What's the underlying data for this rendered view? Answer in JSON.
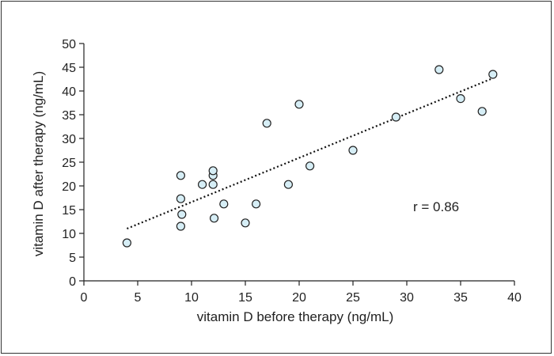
{
  "chart_data": {
    "type": "scatter",
    "title": "",
    "xlabel": "vitamin D before therapy (ng/mL)",
    "ylabel": "vitamin D after therapy (ng/mL)",
    "xlim": [
      0,
      40
    ],
    "ylim": [
      0,
      50
    ],
    "xticks": [
      0,
      5,
      10,
      15,
      20,
      25,
      30,
      35,
      40
    ],
    "yticks": [
      0,
      5,
      10,
      15,
      20,
      25,
      30,
      35,
      40,
      45,
      50
    ],
    "grid": false,
    "points": [
      {
        "x": 4,
        "y": 8
      },
      {
        "x": 9,
        "y": 11.5
      },
      {
        "x": 9.1,
        "y": 14
      },
      {
        "x": 9,
        "y": 17.3
      },
      {
        "x": 9,
        "y": 22.2
      },
      {
        "x": 11,
        "y": 20.3
      },
      {
        "x": 12,
        "y": 20.3
      },
      {
        "x": 12,
        "y": 22.2
      },
      {
        "x": 12,
        "y": 23.2
      },
      {
        "x": 12.1,
        "y": 13.2
      },
      {
        "x": 13,
        "y": 16.2
      },
      {
        "x": 15,
        "y": 12.2
      },
      {
        "x": 16,
        "y": 16.2
      },
      {
        "x": 17,
        "y": 33.2
      },
      {
        "x": 19,
        "y": 20.3
      },
      {
        "x": 20,
        "y": 37.2
      },
      {
        "x": 21,
        "y": 24.2
      },
      {
        "x": 25,
        "y": 27.5
      },
      {
        "x": 29,
        "y": 34.5
      },
      {
        "x": 33,
        "y": 44.5
      },
      {
        "x": 35,
        "y": 38.4
      },
      {
        "x": 37,
        "y": 35.7
      },
      {
        "x": 38,
        "y": 43.5
      }
    ],
    "trendline": {
      "style": "dotted",
      "from": {
        "x": 4,
        "y": 11
      },
      "to": {
        "x": 37.8,
        "y": 42.5
      }
    },
    "annotation": "r = 0.86",
    "marker_fill": "#d6eef6",
    "marker_stroke": "#222222"
  }
}
